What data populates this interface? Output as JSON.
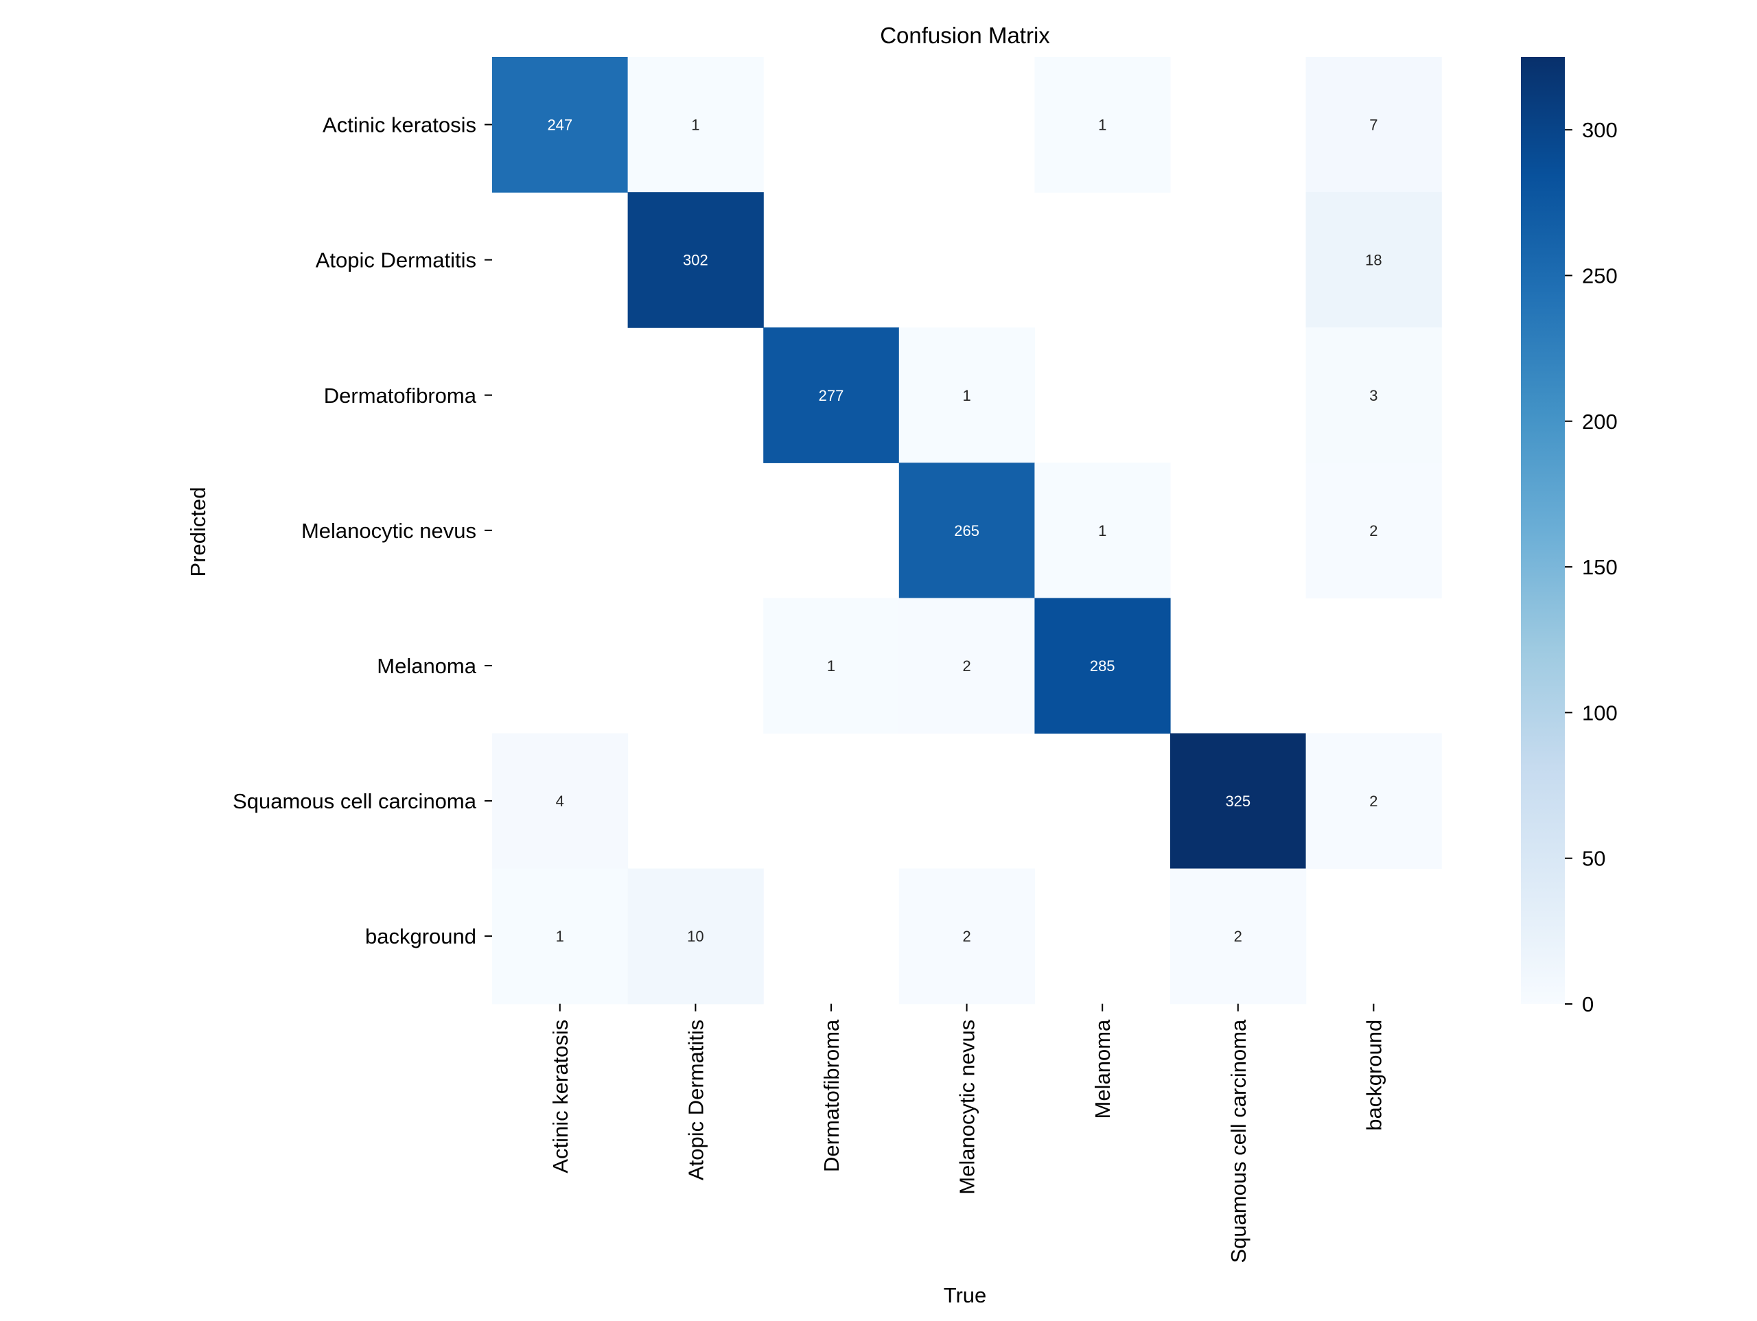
{
  "chart_data": {
    "type": "heatmap",
    "title": "Confusion Matrix",
    "xlabel": "True",
    "ylabel": "Predicted",
    "row_labels": [
      "Actinic keratosis",
      "Atopic Dermatitis",
      "Dermatofibroma",
      "Melanocytic nevus",
      "Melanoma",
      "Squamous cell carcinoma",
      "background"
    ],
    "col_labels": [
      "Actinic keratosis",
      "Atopic Dermatitis",
      "Dermatofibroma",
      "Melanocytic nevus",
      "Melanoma",
      "Squamous cell carcinoma",
      "background"
    ],
    "values": [
      [
        247,
        1,
        null,
        null,
        1,
        null,
        7
      ],
      [
        null,
        302,
        null,
        null,
        null,
        null,
        18
      ],
      [
        null,
        null,
        277,
        1,
        null,
        null,
        3
      ],
      [
        null,
        null,
        null,
        265,
        1,
        null,
        2
      ],
      [
        null,
        null,
        1,
        2,
        285,
        null,
        null
      ],
      [
        4,
        null,
        null,
        null,
        null,
        325,
        2
      ],
      [
        1,
        10,
        null,
        2,
        null,
        2,
        null
      ]
    ],
    "colorbar": {
      "min": 0,
      "max": 325,
      "ticks": [
        0,
        50,
        100,
        150,
        200,
        250,
        300
      ],
      "colormap": "Blues"
    }
  }
}
